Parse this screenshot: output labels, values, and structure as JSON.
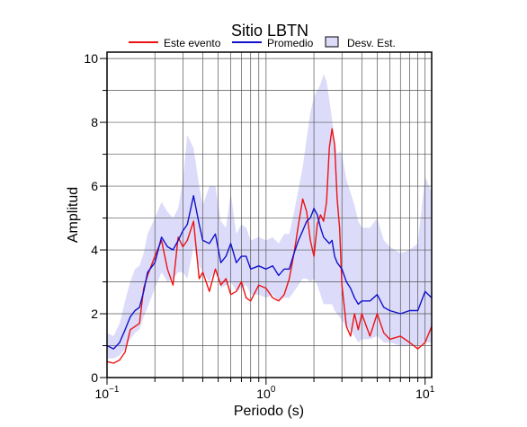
{
  "chart_data": {
    "type": "line",
    "title": "Sitio LBTN",
    "xlabel": "Periodo (s)",
    "ylabel": "Amplitud",
    "xscale": "log",
    "xlim": [
      0.1,
      11
    ],
    "ylim": [
      0,
      10.2
    ],
    "grid": true,
    "legend_position": "top",
    "x_tick_labels": [
      {
        "value": 0.1,
        "base": "10",
        "exp": "−1"
      },
      {
        "value": 1,
        "base": "10",
        "exp": "0"
      },
      {
        "value": 10,
        "base": "10",
        "exp": "1"
      }
    ],
    "y_ticks": [
      0,
      2,
      4,
      6,
      8,
      10
    ],
    "series": [
      {
        "name": "Este evento",
        "kind": "line",
        "color": "#ee1111",
        "x": [
          0.1,
          0.11,
          0.12,
          0.13,
          0.14,
          0.15,
          0.16,
          0.17,
          0.18,
          0.2,
          0.22,
          0.24,
          0.26,
          0.28,
          0.3,
          0.32,
          0.35,
          0.38,
          0.4,
          0.44,
          0.48,
          0.52,
          0.56,
          0.6,
          0.65,
          0.7,
          0.75,
          0.8,
          0.9,
          1.0,
          1.1,
          1.2,
          1.3,
          1.4,
          1.5,
          1.6,
          1.7,
          1.8,
          1.9,
          2.0,
          2.1,
          2.2,
          2.3,
          2.4,
          2.5,
          2.6,
          2.7,
          2.8,
          2.9,
          3.0,
          3.2,
          3.4,
          3.6,
          3.8,
          4.0,
          4.5,
          5.0,
          5.5,
          6.0,
          7.0,
          8.0,
          9.0,
          10.0,
          11.0
        ],
        "y": [
          0.5,
          0.45,
          0.55,
          0.8,
          1.5,
          1.6,
          1.7,
          2.8,
          3.2,
          3.8,
          4.3,
          3.4,
          2.9,
          4.4,
          4.1,
          4.3,
          4.9,
          3.1,
          3.3,
          2.7,
          3.4,
          2.9,
          3.1,
          2.6,
          2.7,
          3.0,
          2.5,
          2.4,
          2.9,
          2.8,
          2.5,
          2.4,
          2.6,
          3.1,
          3.9,
          4.8,
          5.6,
          5.2,
          4.3,
          3.8,
          4.8,
          5.1,
          4.9,
          5.5,
          7.2,
          7.8,
          7.3,
          5.6,
          4.7,
          2.9,
          1.6,
          1.3,
          2.0,
          1.5,
          2.0,
          1.3,
          2.0,
          1.4,
          1.2,
          1.3,
          1.1,
          0.9,
          1.1,
          1.6
        ]
      },
      {
        "name": "Promedio",
        "kind": "line",
        "color": "#1111cc",
        "x": [
          0.1,
          0.11,
          0.12,
          0.13,
          0.14,
          0.15,
          0.16,
          0.17,
          0.18,
          0.2,
          0.22,
          0.24,
          0.26,
          0.28,
          0.3,
          0.32,
          0.35,
          0.38,
          0.4,
          0.44,
          0.48,
          0.52,
          0.56,
          0.6,
          0.65,
          0.7,
          0.75,
          0.8,
          0.9,
          1.0,
          1.1,
          1.2,
          1.3,
          1.4,
          1.5,
          1.6,
          1.7,
          1.8,
          1.9,
          2.0,
          2.1,
          2.2,
          2.3,
          2.4,
          2.5,
          2.6,
          2.7,
          2.8,
          2.9,
          3.0,
          3.2,
          3.4,
          3.6,
          3.8,
          4.0,
          4.5,
          5.0,
          5.5,
          6.0,
          7.0,
          8.0,
          9.0,
          10.0,
          11.0
        ],
        "y": [
          1.0,
          0.9,
          1.1,
          1.5,
          1.9,
          2.1,
          2.2,
          2.7,
          3.3,
          3.6,
          4.4,
          4.1,
          4.0,
          4.3,
          4.6,
          4.8,
          5.7,
          4.8,
          4.3,
          4.2,
          4.5,
          3.6,
          3.8,
          4.2,
          3.6,
          3.8,
          3.8,
          3.4,
          3.5,
          3.4,
          3.5,
          3.2,
          3.4,
          3.4,
          3.9,
          4.3,
          4.6,
          4.9,
          5.0,
          5.3,
          5.1,
          4.7,
          4.4,
          4.3,
          4.2,
          4.3,
          3.8,
          3.6,
          3.5,
          3.4,
          3.0,
          2.8,
          2.5,
          2.3,
          2.4,
          2.4,
          2.6,
          2.2,
          2.1,
          2.0,
          2.1,
          2.1,
          2.7,
          2.5
        ]
      },
      {
        "name": "Desv. Est.",
        "kind": "band",
        "color": "#dcdcfa",
        "x": [
          0.1,
          0.11,
          0.12,
          0.13,
          0.14,
          0.15,
          0.16,
          0.17,
          0.18,
          0.2,
          0.22,
          0.24,
          0.26,
          0.28,
          0.3,
          0.32,
          0.35,
          0.38,
          0.4,
          0.44,
          0.48,
          0.52,
          0.56,
          0.6,
          0.65,
          0.7,
          0.75,
          0.8,
          0.9,
          1.0,
          1.1,
          1.2,
          1.3,
          1.4,
          1.5,
          1.6,
          1.7,
          1.8,
          1.9,
          2.0,
          2.1,
          2.2,
          2.3,
          2.4,
          2.5,
          2.6,
          2.7,
          2.8,
          2.9,
          3.0,
          3.2,
          3.4,
          3.6,
          3.8,
          4.0,
          4.5,
          5.0,
          5.5,
          6.0,
          7.0,
          8.0,
          9.0,
          10.0,
          11.0
        ],
        "upper": [
          1.4,
          1.3,
          1.7,
          2.4,
          3.0,
          3.4,
          3.5,
          3.9,
          4.5,
          5.0,
          5.5,
          5.2,
          5.0,
          5.3,
          6.2,
          7.6,
          7.2,
          6.0,
          5.4,
          6.0,
          6.0,
          4.9,
          4.7,
          5.8,
          4.5,
          4.8,
          4.7,
          4.3,
          4.4,
          4.3,
          4.4,
          4.2,
          4.5,
          4.5,
          5.2,
          5.9,
          6.6,
          7.5,
          8.3,
          8.8,
          9.0,
          9.2,
          9.5,
          9.3,
          8.7,
          8.1,
          7.4,
          7.0,
          7.1,
          7.0,
          6.2,
          5.8,
          5.4,
          4.9,
          4.7,
          4.7,
          5.0,
          4.3,
          4.1,
          3.9,
          4.0,
          4.2,
          6.3,
          5.8
        ],
        "lower": [
          0.6,
          0.6,
          0.7,
          0.9,
          1.2,
          1.4,
          1.5,
          1.9,
          2.2,
          2.8,
          3.3,
          3.0,
          3.1,
          3.3,
          3.3,
          3.1,
          4.1,
          3.5,
          3.3,
          3.0,
          3.4,
          2.8,
          2.9,
          3.0,
          2.7,
          2.8,
          2.9,
          2.6,
          2.6,
          2.5,
          2.6,
          2.4,
          2.5,
          2.5,
          2.7,
          2.9,
          3.1,
          3.1,
          3.0,
          3.1,
          2.9,
          2.6,
          2.3,
          2.3,
          2.3,
          2.3,
          2.1,
          2.0,
          1.9,
          1.8,
          1.6,
          1.5,
          1.3,
          1.1,
          1.2,
          1.2,
          1.3,
          1.1,
          1.1,
          1.0,
          1.0,
          1.0,
          1.1,
          1.1
        ]
      }
    ]
  }
}
